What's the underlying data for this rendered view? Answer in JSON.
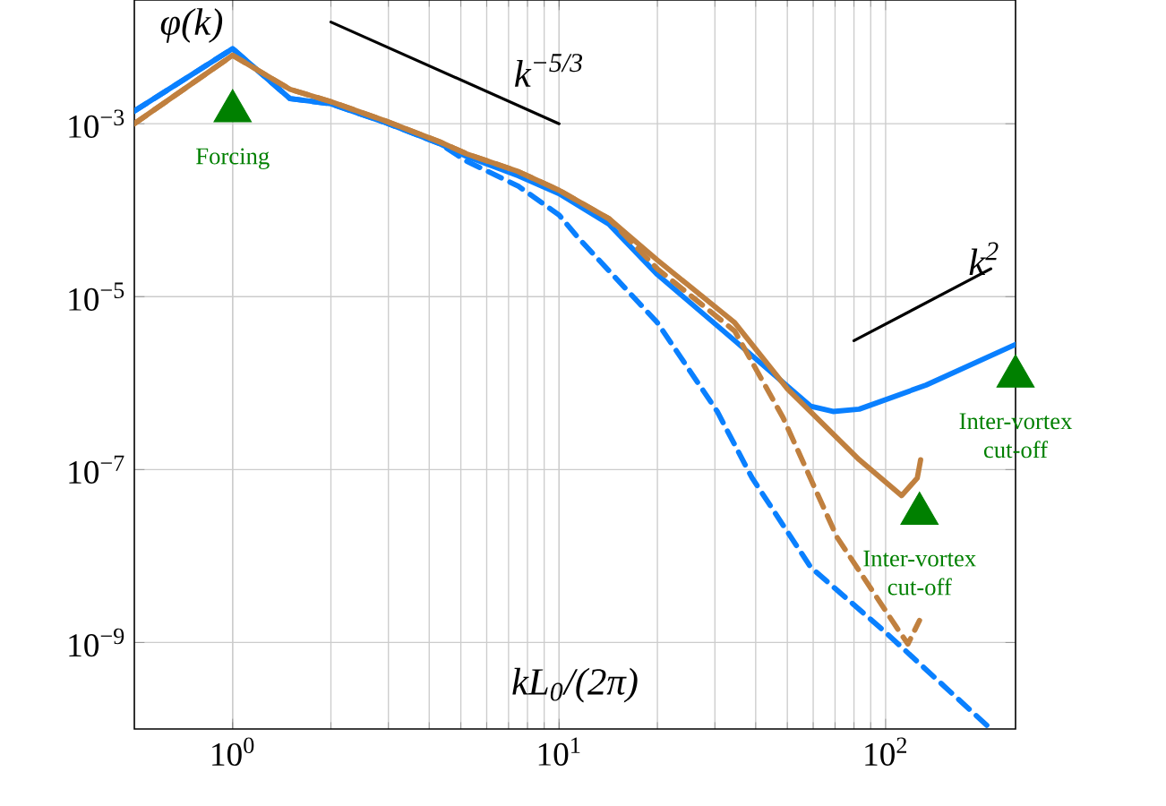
{
  "chart_data": {
    "type": "line",
    "xlabel": "kL$_{0}$/(2π)",
    "ylabel": "φ(k)",
    "log": "xy",
    "grid": true,
    "xlim": [
      0.5,
      250
    ],
    "ylim": [
      1e-10,
      0.027
    ],
    "xticks": [
      {
        "value": 1,
        "label": "10$^{0}$"
      },
      {
        "value": 10,
        "label": "10$^{1}$"
      },
      {
        "value": 100,
        "label": "10$^{2}$"
      }
    ],
    "yticks": [
      {
        "value": 1e-09,
        "label": "10$^{−9}$"
      },
      {
        "value": 1e-07,
        "label": "10$^{−7}$"
      },
      {
        "value": 1e-05,
        "label": "10$^{−5}$"
      },
      {
        "value": 0.001,
        "label": "10$^{−3}$"
      }
    ],
    "series": [
      {
        "color": "#0a80ff",
        "line_style": "solid",
        "x": [
          0.5,
          1,
          1.5,
          2,
          2.9,
          4.3,
          5.2,
          7.5,
          10,
          14.2,
          20,
          34.5,
          59,
          69,
          83,
          133,
          250
        ],
        "values": [
          0.0014,
          0.0074,
          0.00195,
          0.0017,
          0.00105,
          0.00059,
          0.00042,
          0.00025,
          0.000155,
          6.9e-05,
          1.8e-05,
          3.1e-06,
          5.4e-07,
          4.7e-07,
          5e-07,
          9.5e-07,
          2.8e-06
        ]
      },
      {
        "color": "#0a80ff",
        "line_style": "dashed",
        "x": [
          0.5,
          1,
          1.5,
          2,
          2.9,
          4.3,
          5.2,
          7.5,
          10,
          11.5,
          20,
          30.5,
          39,
          59,
          98,
          210
        ],
        "values": [
          0.0014,
          0.0074,
          0.00195,
          0.0017,
          0.00105,
          0.00059,
          0.00037,
          0.00019,
          8.8e-05,
          4.7e-05,
          5e-06,
          4.7e-07,
          8e-08,
          7.4e-09,
          1.4e-09,
          1e-10
        ]
      },
      {
        "color": "#c0803f",
        "line_style": "solid",
        "x": [
          0.5,
          1,
          1.5,
          2,
          2.9,
          4.3,
          5.2,
          7.5,
          10,
          14.2,
          20,
          34.5,
          50,
          83,
          112,
          125,
          128
        ],
        "values": [
          0.001,
          0.0062,
          0.0025,
          0.0018,
          0.0011,
          0.00062,
          0.00045,
          0.00028,
          0.00017,
          8e-05,
          2.65e-05,
          5e-06,
          8.6e-07,
          1.3e-07,
          5e-08,
          8e-08,
          1.3e-07
        ]
      },
      {
        "color": "#c0803f",
        "line_style": "dashed",
        "x": [
          0.5,
          1,
          1.5,
          2,
          2.9,
          4.3,
          5.2,
          7.5,
          10,
          14.2,
          20,
          34.5,
          48.5,
          71,
          108,
          117,
          127
        ],
        "values": [
          0.001,
          0.0062,
          0.0025,
          0.0018,
          0.0011,
          0.00062,
          0.00045,
          0.00028,
          0.00017,
          8e-05,
          2.1e-05,
          4e-06,
          4e-07,
          1.65e-08,
          1.5e-09,
          9.6e-10,
          1.8e-09
        ]
      },
      {
        "type": "line",
        "name": "k$^{−5/3}$",
        "color": "#000000",
        "line_style": "solid",
        "x": [
          2,
          10
        ],
        "values": [
          0.015,
          0.001
        ]
      },
      {
        "type": "line",
        "name": "k$^{2}$",
        "color": "#000000",
        "line_style": "solid",
        "x": [
          80,
          210
        ],
        "values": [
          3.1e-06,
          2.1e-05
        ]
      },
      {
        "type": "scatter",
        "marker": "triangle",
        "color": "#008000",
        "x": [
          1,
          127,
          250
        ],
        "values": [
          0.0014,
          3.1e-08,
          1.2e-06
        ]
      }
    ],
    "annotations": [
      "Forcing",
      "Inter-vortex cut-off",
      "Inter-vortex cut-off"
    ]
  }
}
